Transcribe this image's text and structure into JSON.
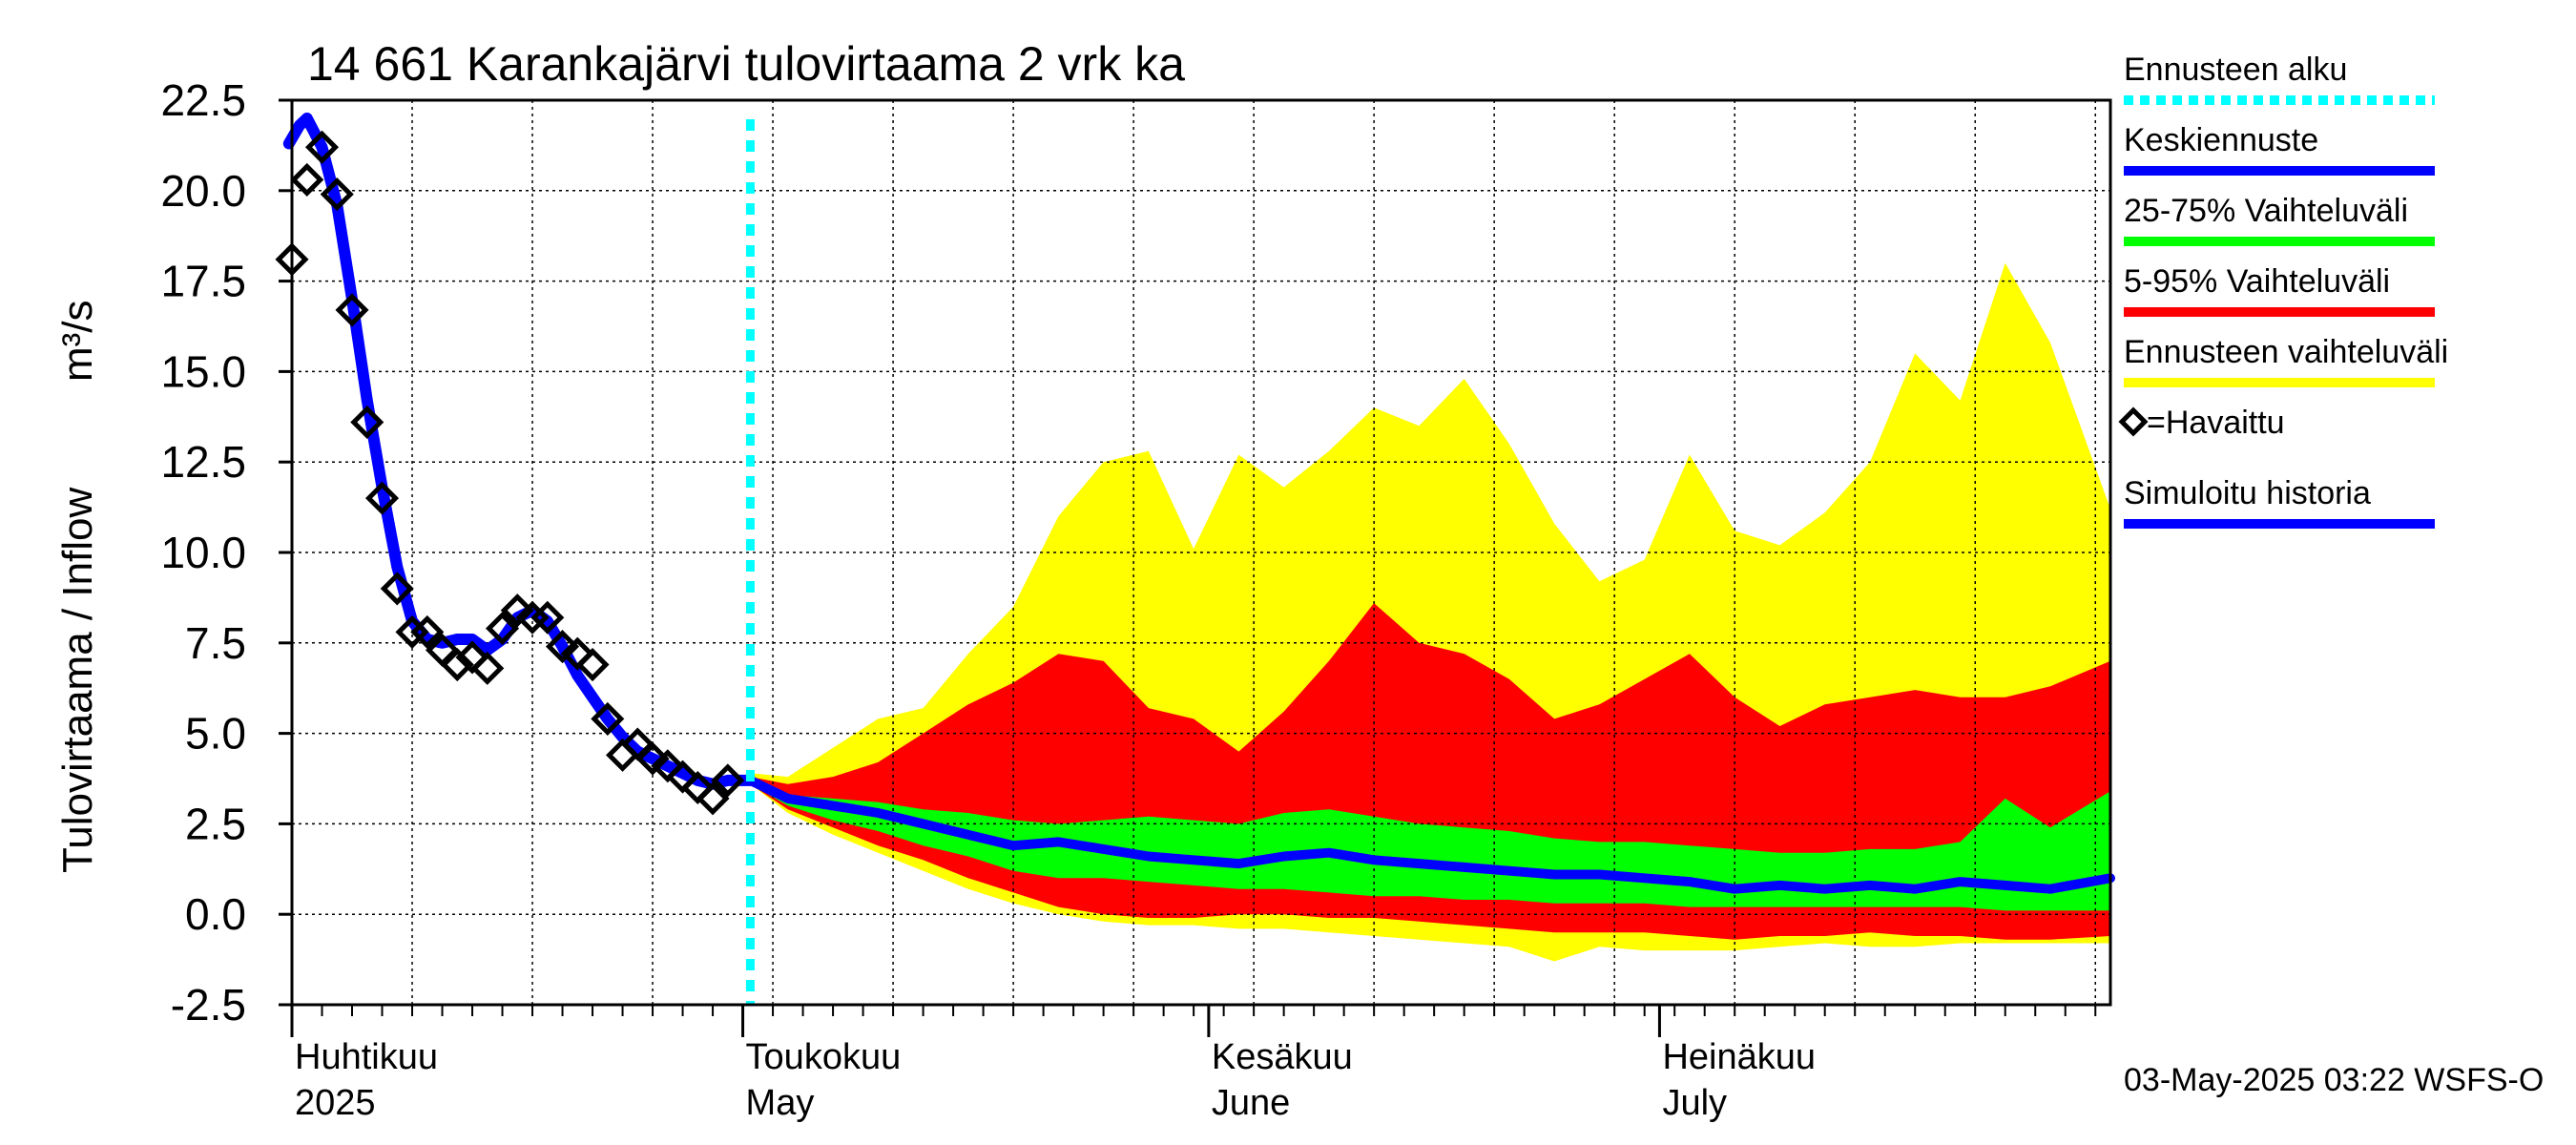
{
  "chart_data": {
    "type": "area",
    "title": "14 661 Karankajärvi tulovirtaama 2 vrk ka",
    "ylabel": "Tulovirtaama / Inflow",
    "yunit": "m³/s",
    "ylim": [
      -2.5,
      22.5
    ],
    "yticks": [
      "22.5",
      "20.0",
      "17.5",
      "15.0",
      "12.5",
      "10.0",
      "7.5",
      "5.0",
      "2.5",
      "0.0",
      "-2.5"
    ],
    "ytick_values": [
      22.5,
      20.0,
      17.5,
      15.0,
      12.5,
      10.0,
      7.5,
      5.0,
      2.5,
      0.0,
      -2.5
    ],
    "grid": true,
    "x_start_day": 0,
    "x_end_day": 121,
    "forecast_start_day": 30.5,
    "month_labels": [
      {
        "day": 1,
        "fi": "Huhtikuu",
        "en": "2025"
      },
      {
        "day": 31,
        "fi": "Toukokuu",
        "en": "May"
      },
      {
        "day": 62,
        "fi": "Kesäkuu",
        "en": "June"
      },
      {
        "day": 92,
        "fi": "Heinäkuu",
        "en": "July"
      }
    ],
    "legend": {
      "position": "right",
      "items": [
        {
          "label": "Ennusteen alku",
          "color": "#00ffff",
          "style": "dotted"
        },
        {
          "label": "Keskiennuste",
          "color": "#0000ff",
          "style": "line"
        },
        {
          "label": "25-75% Vaihteluväli",
          "color": "#00ff00",
          "style": "line"
        },
        {
          "label": "5-95% Vaihteluväli",
          "color": "#ff0000",
          "style": "line"
        },
        {
          "label": "Ennusteen vaihteluväli",
          "color": "#ffff00",
          "style": "line"
        },
        {
          "label": "=Havaittu",
          "color": "#000000",
          "style": "diamond"
        },
        {
          "label": "Simuloitu historia",
          "color": "#0000ff",
          "style": "line"
        }
      ]
    },
    "footer": "03-May-2025 03:22 WSFS-O",
    "observed": [
      [
        0,
        18.1
      ],
      [
        1,
        20.3
      ],
      [
        2,
        21.2
      ],
      [
        3,
        19.9
      ],
      [
        4,
        16.7
      ],
      [
        5,
        13.6
      ],
      [
        6,
        11.5
      ],
      [
        7,
        9.0
      ],
      [
        8,
        7.8
      ],
      [
        9,
        7.8
      ],
      [
        10,
        7.3
      ],
      [
        11,
        6.9
      ],
      [
        12,
        7.1
      ],
      [
        13,
        6.8
      ],
      [
        14,
        7.9
      ],
      [
        15,
        8.4
      ],
      [
        16,
        8.2
      ],
      [
        17,
        8.2
      ],
      [
        18,
        7.4
      ],
      [
        19,
        7.2
      ],
      [
        20,
        6.9
      ],
      [
        21,
        5.4
      ],
      [
        22,
        4.4
      ],
      [
        23,
        4.7
      ],
      [
        24,
        4.3
      ],
      [
        25,
        4.1
      ],
      [
        26,
        3.8
      ],
      [
        27,
        3.5
      ],
      [
        28,
        3.2
      ],
      [
        29,
        3.7
      ]
    ],
    "simulated_history": [
      [
        -0.2,
        21.3
      ],
      [
        0.5,
        21.8
      ],
      [
        1,
        22.0
      ],
      [
        2,
        21.2
      ],
      [
        3,
        19.6
      ],
      [
        4,
        17.0
      ],
      [
        5,
        14.2
      ],
      [
        6,
        11.8
      ],
      [
        7,
        9.6
      ],
      [
        8,
        8.1
      ],
      [
        9,
        7.6
      ],
      [
        10,
        7.5
      ],
      [
        11,
        7.6
      ],
      [
        12,
        7.6
      ],
      [
        13,
        7.3
      ],
      [
        14,
        7.6
      ],
      [
        15,
        8.2
      ],
      [
        16,
        8.4
      ],
      [
        17,
        8.1
      ],
      [
        18,
        7.4
      ],
      [
        19,
        6.6
      ],
      [
        20,
        6.0
      ],
      [
        21,
        5.4
      ],
      [
        22,
        4.9
      ],
      [
        23,
        4.5
      ],
      [
        24,
        4.3
      ],
      [
        25,
        4.1
      ],
      [
        26,
        3.9
      ],
      [
        27,
        3.7
      ],
      [
        28,
        3.6
      ],
      [
        29,
        3.7
      ],
      [
        30.5,
        3.7
      ]
    ],
    "forecast_days": [
      30.5,
      33,
      36,
      39,
      42,
      45,
      48,
      51,
      54,
      57,
      60,
      63,
      66,
      69,
      72,
      75,
      78,
      81,
      84,
      87,
      90,
      93,
      96,
      99,
      102,
      105,
      108,
      111,
      114,
      117,
      121
    ],
    "median": [
      3.7,
      3.2,
      3.0,
      2.8,
      2.5,
      2.2,
      1.9,
      2.0,
      1.8,
      1.6,
      1.5,
      1.4,
      1.6,
      1.7,
      1.5,
      1.4,
      1.3,
      1.2,
      1.1,
      1.1,
      1.0,
      0.9,
      0.7,
      0.8,
      0.7,
      0.8,
      0.7,
      0.9,
      0.8,
      0.7,
      1.0
    ],
    "p25": [
      3.6,
      3.0,
      2.6,
      2.3,
      1.9,
      1.6,
      1.2,
      1.0,
      1.0,
      0.9,
      0.8,
      0.7,
      0.7,
      0.6,
      0.5,
      0.5,
      0.4,
      0.4,
      0.3,
      0.3,
      0.3,
      0.2,
      0.2,
      0.2,
      0.2,
      0.2,
      0.2,
      0.2,
      0.1,
      0.1,
      0.1
    ],
    "p75": [
      3.7,
      3.3,
      3.2,
      3.1,
      2.9,
      2.8,
      2.6,
      2.5,
      2.6,
      2.7,
      2.6,
      2.5,
      2.8,
      2.9,
      2.7,
      2.5,
      2.4,
      2.3,
      2.1,
      2.0,
      2.0,
      1.9,
      1.8,
      1.7,
      1.7,
      1.8,
      1.8,
      2.0,
      3.2,
      2.4,
      3.4
    ],
    "p05": [
      3.6,
      2.9,
      2.4,
      1.9,
      1.5,
      1.0,
      0.6,
      0.2,
      0.0,
      -0.1,
      -0.1,
      0.0,
      0.0,
      -0.1,
      -0.1,
      -0.2,
      -0.3,
      -0.4,
      -0.5,
      -0.5,
      -0.5,
      -0.6,
      -0.7,
      -0.6,
      -0.6,
      -0.5,
      -0.6,
      -0.6,
      -0.7,
      -0.7,
      -0.6
    ],
    "p95": [
      3.8,
      3.6,
      3.8,
      4.2,
      5.0,
      5.8,
      6.4,
      7.2,
      7.0,
      5.7,
      5.4,
      4.5,
      5.6,
      7.0,
      8.6,
      7.5,
      7.2,
      6.5,
      5.4,
      5.8,
      6.5,
      7.2,
      6.0,
      5.2,
      5.8,
      6.0,
      6.2,
      6.0,
      6.0,
      6.3,
      7.0
    ],
    "min": [
      3.6,
      2.8,
      2.2,
      1.7,
      1.2,
      0.7,
      0.3,
      0.0,
      -0.2,
      -0.3,
      -0.3,
      -0.4,
      -0.4,
      -0.5,
      -0.6,
      -0.7,
      -0.8,
      -0.9,
      -1.3,
      -0.9,
      -1.0,
      -1.0,
      -1.0,
      -0.9,
      -0.8,
      -0.9,
      -0.9,
      -0.8,
      -0.8,
      -0.8,
      -0.8
    ],
    "max": [
      3.9,
      3.8,
      4.6,
      5.4,
      5.7,
      7.2,
      8.5,
      11.0,
      12.5,
      12.8,
      10.1,
      12.7,
      11.8,
      12.8,
      14.0,
      13.5,
      14.8,
      13.0,
      10.8,
      9.2,
      9.8,
      12.7,
      10.6,
      10.2,
      11.1,
      12.5,
      15.5,
      14.2,
      18.0,
      15.8,
      11.2
    ]
  }
}
